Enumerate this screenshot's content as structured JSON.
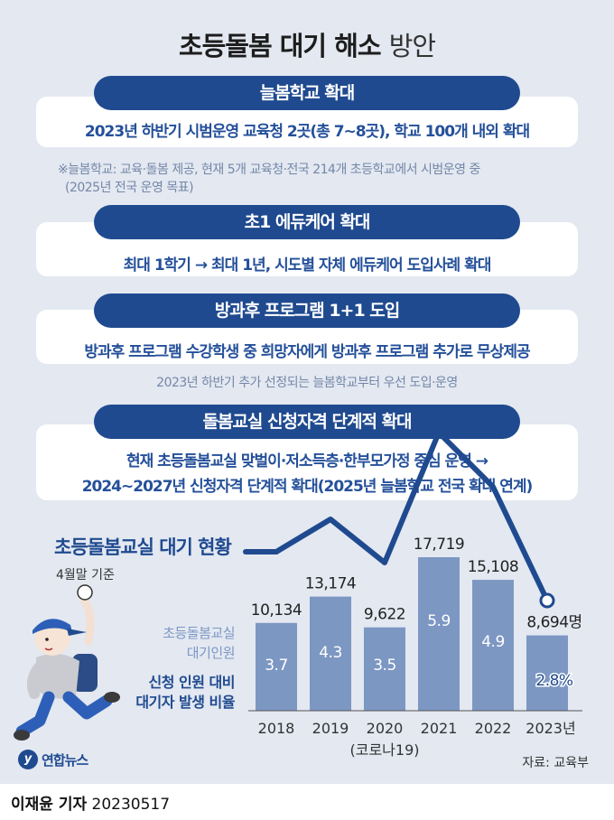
{
  "header": {
    "title_bold": "초등돌봄 대기 해소",
    "title_light": "방안"
  },
  "sections": [
    {
      "heading": "늘봄학교 확대",
      "lines": [
        "2023년 하반기 시범운영 교육청 2곳(총 7~8곳), 학교 100개 내외 확대"
      ],
      "notes": [
        "※늘봄학교: 교육·돌봄 제공, 현재 5개 교육청·전국 214개 초등학교에서 시범운영 중",
        "(2025년 전국 운영 목표)"
      ]
    },
    {
      "heading": "초1 에듀케어 확대",
      "lines": [
        "최대 1학기 → 최대 1년, 시도별 자체 에듀케어 도입사례 확대"
      ],
      "notes": []
    },
    {
      "heading": "방과후 프로그램 1+1 도입",
      "lines": [
        "방과후 프로그램 수강학생 중 희망자에게 방과후 프로그램 추가로 무상제공"
      ],
      "notes": [
        "2023년 하반기 추가 선정되는 늘봄학교부터 우선 도입·운영"
      ]
    },
    {
      "heading": "돌봄교실 신청자격 단계적 확대",
      "lines": [
        "현재 초등돌봄교실 맞벌이·저소득층·한부모가정 중심 운영 →",
        "2024~2027년 신청자격 단계적 확대(2025년 늘봄학교 전국 확대 연계)"
      ],
      "notes": []
    }
  ],
  "chart_data": {
    "type": "bar",
    "title": "초등돌봄교실 대기 현황",
    "subtitle": "4월말 기준",
    "categories": [
      "2018",
      "2019",
      "2020",
      "2021",
      "2022",
      "2023년"
    ],
    "category_notes": [
      "",
      "",
      "(코로나19)",
      "",
      "",
      ""
    ],
    "series": [
      {
        "name": "초등돌봄교실 대기인원",
        "type": "bar",
        "values": [
          10134,
          13174,
          9622,
          17719,
          15108,
          8694
        ],
        "value_labels": [
          "10,134",
          "13,174",
          "9,622",
          "17,719",
          "15,108",
          "8,694명"
        ],
        "color": "#7d97c3"
      },
      {
        "name": "신청 인원 대비 대기자 발생 비율",
        "type": "line",
        "values": [
          3.7,
          4.3,
          3.5,
          5.9,
          4.9,
          2.8
        ],
        "value_labels": [
          "3.7",
          "4.3",
          "3.5",
          "5.9",
          "4.9",
          "2.8%"
        ],
        "color": "#1f4a8f"
      }
    ],
    "legend": {
      "bar_lines": [
        "초등돌봄교실",
        "대기인원"
      ],
      "line_lines": [
        "신청 인원 대비",
        "대기자 발생 비율"
      ]
    },
    "source": "자료: 교육부"
  },
  "footer": {
    "logo": "연합뉴스",
    "reporter": "이재윤 기자",
    "date": "20230517"
  },
  "colors": {
    "background": "#e3e8f1",
    "accent": "#1f4a8f",
    "bar": "#7d97c3",
    "box_text": "#24509a"
  }
}
